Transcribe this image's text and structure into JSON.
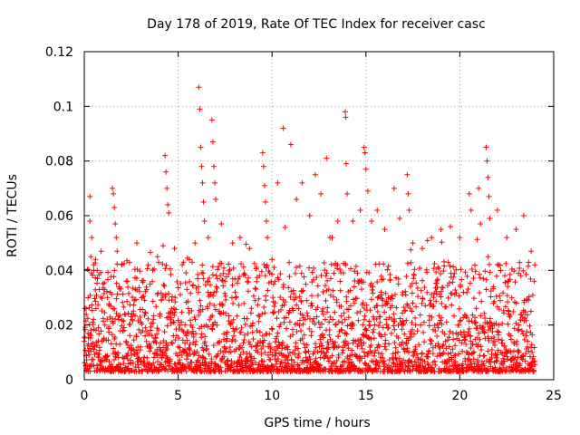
{
  "chart_data": {
    "type": "scatter",
    "title": "Day 178 of 2019, Rate Of TEC Index for receiver casc",
    "xlabel": "GPS time / hours",
    "ylabel": "ROTI / TECUs",
    "xlim": [
      0,
      25
    ],
    "ylim": [
      0,
      0.12
    ],
    "xticks": [
      "0",
      "5",
      "10",
      "15",
      "20",
      "25"
    ],
    "yticks": [
      "0",
      "0.02",
      "0.04",
      "0.06",
      "0.08",
      "0.1",
      "0.12"
    ],
    "grid": true,
    "marker": "plus",
    "series_color": "#ff0000",
    "time_span_hours": [
      0,
      24
    ],
    "series": [
      {
        "name": "ROTI",
        "points": [
          [
            0.0,
            0.014
          ],
          [
            0.1,
            0.026
          ],
          [
            0.2,
            0.03
          ],
          [
            0.3,
            0.067
          ],
          [
            0.3,
            0.058
          ],
          [
            0.35,
            0.045
          ],
          [
            0.4,
            0.052
          ],
          [
            0.5,
            0.04
          ],
          [
            0.6,
            0.044
          ],
          [
            0.7,
            0.037
          ],
          [
            0.8,
            0.033
          ],
          [
            0.9,
            0.047
          ],
          [
            1.5,
            0.07
          ],
          [
            1.55,
            0.068
          ],
          [
            1.6,
            0.063
          ],
          [
            1.65,
            0.057
          ],
          [
            1.7,
            0.052
          ],
          [
            1.75,
            0.047
          ],
          [
            2.3,
            0.036
          ],
          [
            2.8,
            0.05
          ],
          [
            3.4,
            0.042
          ],
          [
            3.9,
            0.045
          ],
          [
            4.2,
            0.049
          ],
          [
            4.3,
            0.082
          ],
          [
            4.35,
            0.076
          ],
          [
            4.4,
            0.07
          ],
          [
            4.45,
            0.064
          ],
          [
            4.5,
            0.061
          ],
          [
            4.8,
            0.048
          ],
          [
            5.6,
            0.044
          ],
          [
            5.9,
            0.05
          ],
          [
            6.1,
            0.107
          ],
          [
            6.15,
            0.099
          ],
          [
            6.2,
            0.085
          ],
          [
            6.25,
            0.078
          ],
          [
            6.3,
            0.072
          ],
          [
            6.35,
            0.065
          ],
          [
            6.4,
            0.058
          ],
          [
            6.6,
            0.052
          ],
          [
            6.8,
            0.095
          ],
          [
            6.85,
            0.087
          ],
          [
            6.9,
            0.078
          ],
          [
            6.95,
            0.072
          ],
          [
            7.0,
            0.066
          ],
          [
            7.3,
            0.057
          ],
          [
            7.9,
            0.05
          ],
          [
            8.3,
            0.052
          ],
          [
            8.8,
            0.048
          ],
          [
            9.5,
            0.083
          ],
          [
            9.55,
            0.078
          ],
          [
            9.6,
            0.071
          ],
          [
            9.65,
            0.065
          ],
          [
            9.7,
            0.058
          ],
          [
            9.75,
            0.052
          ],
          [
            10.0,
            0.044
          ],
          [
            10.3,
            0.072
          ],
          [
            10.6,
            0.092
          ],
          [
            11.0,
            0.086
          ],
          [
            11.3,
            0.066
          ],
          [
            11.6,
            0.072
          ],
          [
            12.0,
            0.06
          ],
          [
            12.3,
            0.075
          ],
          [
            12.6,
            0.068
          ],
          [
            12.9,
            0.081
          ],
          [
            13.2,
            0.052
          ],
          [
            13.5,
            0.058
          ],
          [
            13.9,
            0.098
          ],
          [
            13.92,
            0.096
          ],
          [
            13.95,
            0.079
          ],
          [
            14.0,
            0.068
          ],
          [
            14.3,
            0.058
          ],
          [
            14.7,
            0.062
          ],
          [
            14.9,
            0.085
          ],
          [
            14.95,
            0.083
          ],
          [
            15.0,
            0.077
          ],
          [
            15.1,
            0.069
          ],
          [
            15.3,
            0.058
          ],
          [
            15.6,
            0.062
          ],
          [
            16.0,
            0.055
          ],
          [
            16.5,
            0.07
          ],
          [
            16.8,
            0.059
          ],
          [
            17.2,
            0.075
          ],
          [
            17.25,
            0.068
          ],
          [
            17.3,
            0.062
          ],
          [
            17.5,
            0.05
          ],
          [
            18.0,
            0.048
          ],
          [
            18.5,
            0.052
          ],
          [
            19.0,
            0.055
          ],
          [
            19.5,
            0.056
          ],
          [
            20.0,
            0.052
          ],
          [
            20.5,
            0.068
          ],
          [
            20.6,
            0.062
          ],
          [
            21.0,
            0.07
          ],
          [
            21.1,
            0.057
          ],
          [
            21.4,
            0.085
          ],
          [
            21.45,
            0.08
          ],
          [
            21.5,
            0.074
          ],
          [
            21.55,
            0.067
          ],
          [
            21.6,
            0.059
          ],
          [
            22.0,
            0.062
          ],
          [
            22.5,
            0.052
          ],
          [
            23.0,
            0.055
          ],
          [
            23.4,
            0.06
          ],
          [
            23.8,
            0.047
          ]
        ]
      }
    ]
  }
}
